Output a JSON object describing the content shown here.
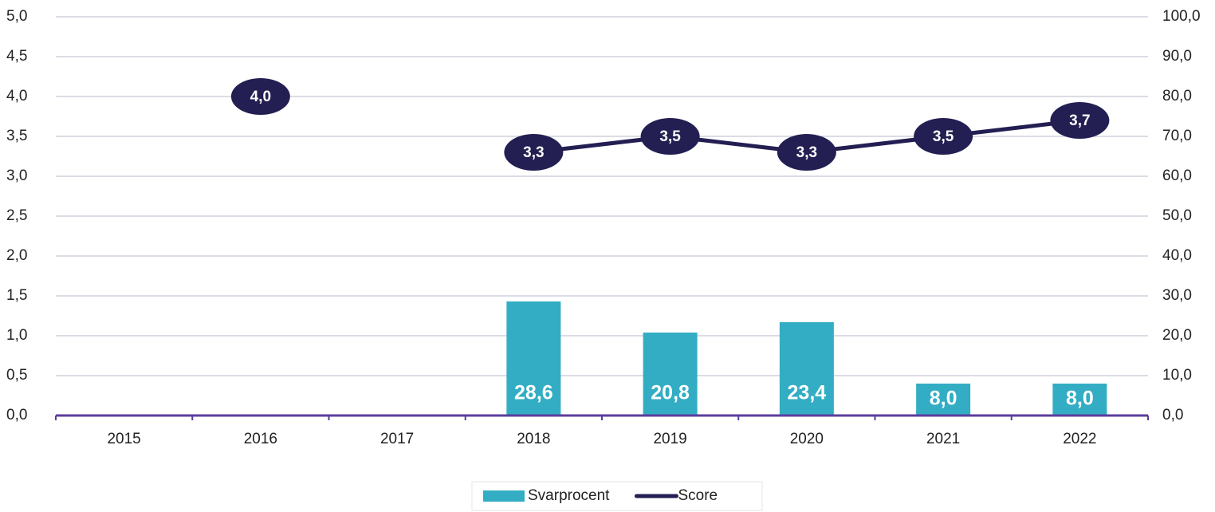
{
  "chart_data": {
    "type": "bar-line",
    "categories": [
      "2015",
      "2016",
      "2017",
      "2018",
      "2019",
      "2020",
      "2021",
      "2022"
    ],
    "series": [
      {
        "name": "Svarprocent",
        "type": "bar",
        "axis": "y2",
        "color": "#33adc3",
        "values": [
          null,
          null,
          null,
          28.6,
          20.8,
          23.4,
          8.0,
          8.0
        ],
        "value_labels": [
          null,
          null,
          null,
          "28,6",
          "20,8",
          "23,4",
          "8,0",
          "8,0"
        ]
      },
      {
        "name": "Score",
        "type": "line",
        "axis": "y",
        "color": "#231f52",
        "values": [
          null,
          4.0,
          null,
          3.3,
          3.5,
          3.3,
          3.5,
          3.7
        ],
        "value_labels": [
          null,
          "4,0",
          null,
          "3,3",
          "3,5",
          "3,3",
          "3,5",
          "3,7"
        ]
      }
    ],
    "ylim": [
      0,
      5
    ],
    "yticks": [
      {
        "value": 0,
        "label": "0,0"
      },
      {
        "value": 0.5,
        "label": "0,5"
      },
      {
        "value": 1,
        "label": "1,0"
      },
      {
        "value": 1.5,
        "label": "1,5"
      },
      {
        "value": 2,
        "label": "2,0"
      },
      {
        "value": 2.5,
        "label": "2,5"
      },
      {
        "value": 3,
        "label": "3,0"
      },
      {
        "value": 3.5,
        "label": "3,5"
      },
      {
        "value": 4,
        "label": "4,0"
      },
      {
        "value": 4.5,
        "label": "4,5"
      },
      {
        "value": 5,
        "label": "5,0"
      }
    ],
    "y2lim": [
      0,
      100
    ],
    "y2ticks": [
      {
        "value": 0,
        "label": "0,0"
      },
      {
        "value": 10,
        "label": "10,0"
      },
      {
        "value": 20,
        "label": "20,0"
      },
      {
        "value": 30,
        "label": "30,0"
      },
      {
        "value": 40,
        "label": "40,0"
      },
      {
        "value": 50,
        "label": "50,0"
      },
      {
        "value": 60,
        "label": "60,0"
      },
      {
        "value": 70,
        "label": "70,0"
      },
      {
        "value": 80,
        "label": "80,0"
      },
      {
        "value": 90,
        "label": "90,0"
      },
      {
        "value": 100,
        "label": "100,0"
      }
    ],
    "grid": true,
    "legend": "bottom"
  }
}
